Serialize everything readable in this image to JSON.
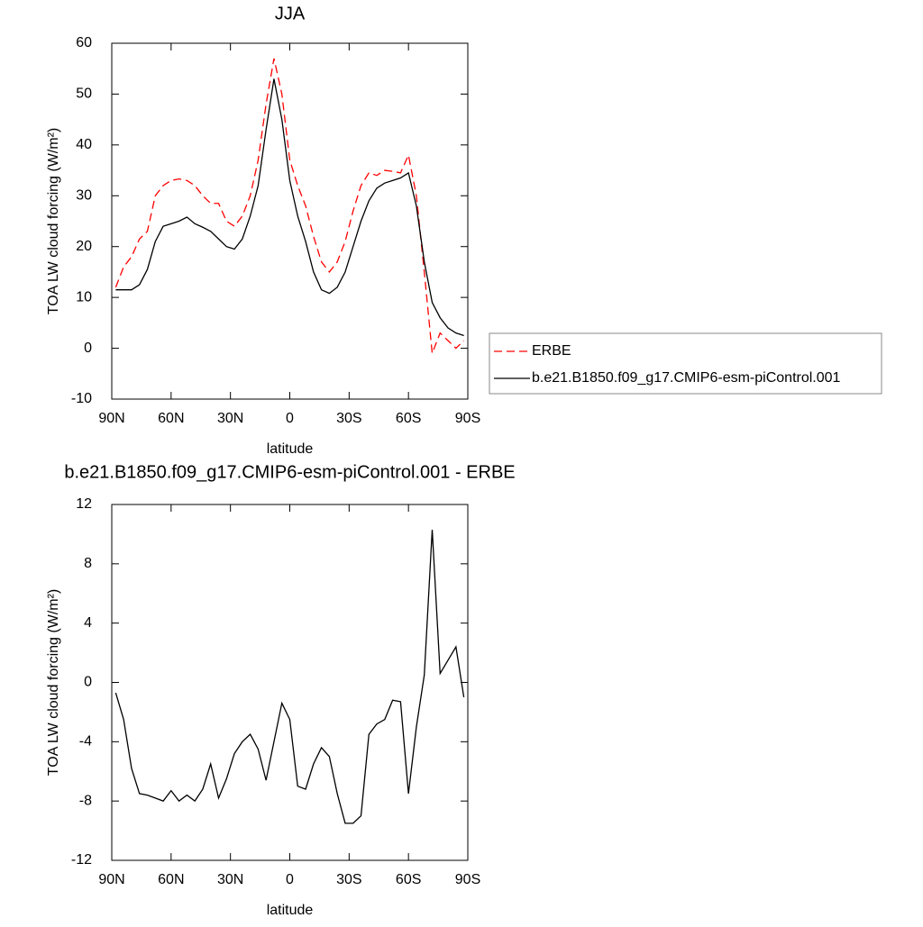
{
  "chart_data": [
    {
      "type": "line",
      "title": "JJA",
      "x_label": "latitude",
      "y_label": "TOA LW cloud forcing (W/m²)",
      "x": [
        88,
        84,
        80,
        76,
        72,
        68,
        64,
        60,
        56,
        52,
        48,
        44,
        40,
        36,
        32,
        28,
        24,
        20,
        16,
        12,
        8,
        4,
        0,
        -4,
        -8,
        -12,
        -16,
        -20,
        -24,
        -28,
        -32,
        -36,
        -40,
        -44,
        -48,
        -52,
        -56,
        -60,
        -64,
        -68,
        -72,
        -76,
        -80,
        -84,
        -88
      ],
      "xlim": [
        90,
        -90
      ],
      "xticks": [
        {
          "value": 90,
          "label": "90N"
        },
        {
          "value": 60,
          "label": "60N"
        },
        {
          "value": 30,
          "label": "30N"
        },
        0,
        {
          "value": -30,
          "label": "30S"
        },
        {
          "value": -60,
          "label": "60S"
        },
        {
          "value": -90,
          "label": "90S"
        }
      ],
      "ylim": [
        -10,
        60
      ],
      "yticks": [
        -10,
        0,
        10,
        20,
        30,
        40,
        50,
        60
      ],
      "legend": "right",
      "series": [
        {
          "name": "ERBE",
          "color": "#ff0000",
          "line_style": "dashed",
          "values": [
            12,
            16,
            18,
            21.5,
            23,
            30,
            32,
            33,
            33.3,
            33,
            32,
            30,
            28.5,
            28.5,
            25,
            24,
            26,
            30,
            37,
            48,
            57,
            50,
            37,
            32,
            28,
            22,
            17,
            15,
            17,
            21,
            27,
            32,
            34.5,
            34,
            35,
            34.8,
            34.5,
            38,
            30,
            15,
            -1,
            3,
            1.5,
            0,
            1.5
          ]
        },
        {
          "name": "b.e21.B1850.f09_g17.CMIP6-esm-piControl.001",
          "color": "#000000",
          "line_style": "solid",
          "values": [
            11.5,
            11.5,
            11.5,
            12.5,
            15.5,
            21,
            24,
            24.5,
            25,
            25.8,
            24.5,
            23.8,
            23,
            21.5,
            20,
            19.5,
            21.5,
            26,
            32,
            43,
            53,
            45,
            33,
            26,
            21,
            15,
            11.5,
            10.8,
            12,
            15,
            20,
            25,
            29,
            31.5,
            32.5,
            33,
            33.5,
            34.5,
            28,
            17,
            9,
            6,
            4,
            3,
            2.5
          ]
        }
      ]
    },
    {
      "type": "line",
      "title": "b.e21.B1850.f09_g17.CMIP6-esm-piControl.001 - ERBE",
      "x_label": "latitude",
      "y_label": "TOA LW cloud forcing (W/m²)",
      "x": [
        88,
        84,
        80,
        76,
        72,
        68,
        64,
        60,
        56,
        52,
        48,
        44,
        40,
        36,
        32,
        28,
        24,
        20,
        16,
        12,
        8,
        4,
        0,
        -4,
        -8,
        -12,
        -16,
        -20,
        -24,
        -28,
        -32,
        -36,
        -40,
        -44,
        -48,
        -52,
        -56,
        -60,
        -64,
        -68,
        -72,
        -76,
        -80,
        -84,
        -88
      ],
      "xlim": [
        90,
        -90
      ],
      "xticks": [
        {
          "value": 90,
          "label": "90N"
        },
        {
          "value": 60,
          "label": "60N"
        },
        {
          "value": 30,
          "label": "30N"
        },
        0,
        {
          "value": -30,
          "label": "30S"
        },
        {
          "value": -60,
          "label": "60S"
        },
        {
          "value": -90,
          "label": "90S"
        }
      ],
      "ylim": [
        -12,
        12
      ],
      "yticks": [
        -12,
        -8,
        -4,
        0,
        4,
        8,
        12
      ],
      "series": [
        {
          "color": "#000000",
          "line_style": "solid",
          "values": [
            -0.7,
            -2.5,
            -5.8,
            -7.5,
            -7.6,
            -7.8,
            -8.0,
            -7.3,
            -8.0,
            -7.6,
            -8.0,
            -7.2,
            -5.5,
            -7.8,
            -6.5,
            -4.8,
            -4.0,
            -3.5,
            -4.5,
            -6.6,
            -4.0,
            -1.4,
            -2.5,
            -7.0,
            -7.2,
            -5.5,
            -4.4,
            -5.0,
            -7.5,
            -9.5,
            -9.5,
            -9.0,
            -3.5,
            -2.8,
            -2.5,
            -1.2,
            -1.3,
            -7.5,
            -3.0,
            0.5,
            10.3,
            0.6,
            1.5,
            2.4,
            -1.0
          ]
        }
      ]
    }
  ]
}
